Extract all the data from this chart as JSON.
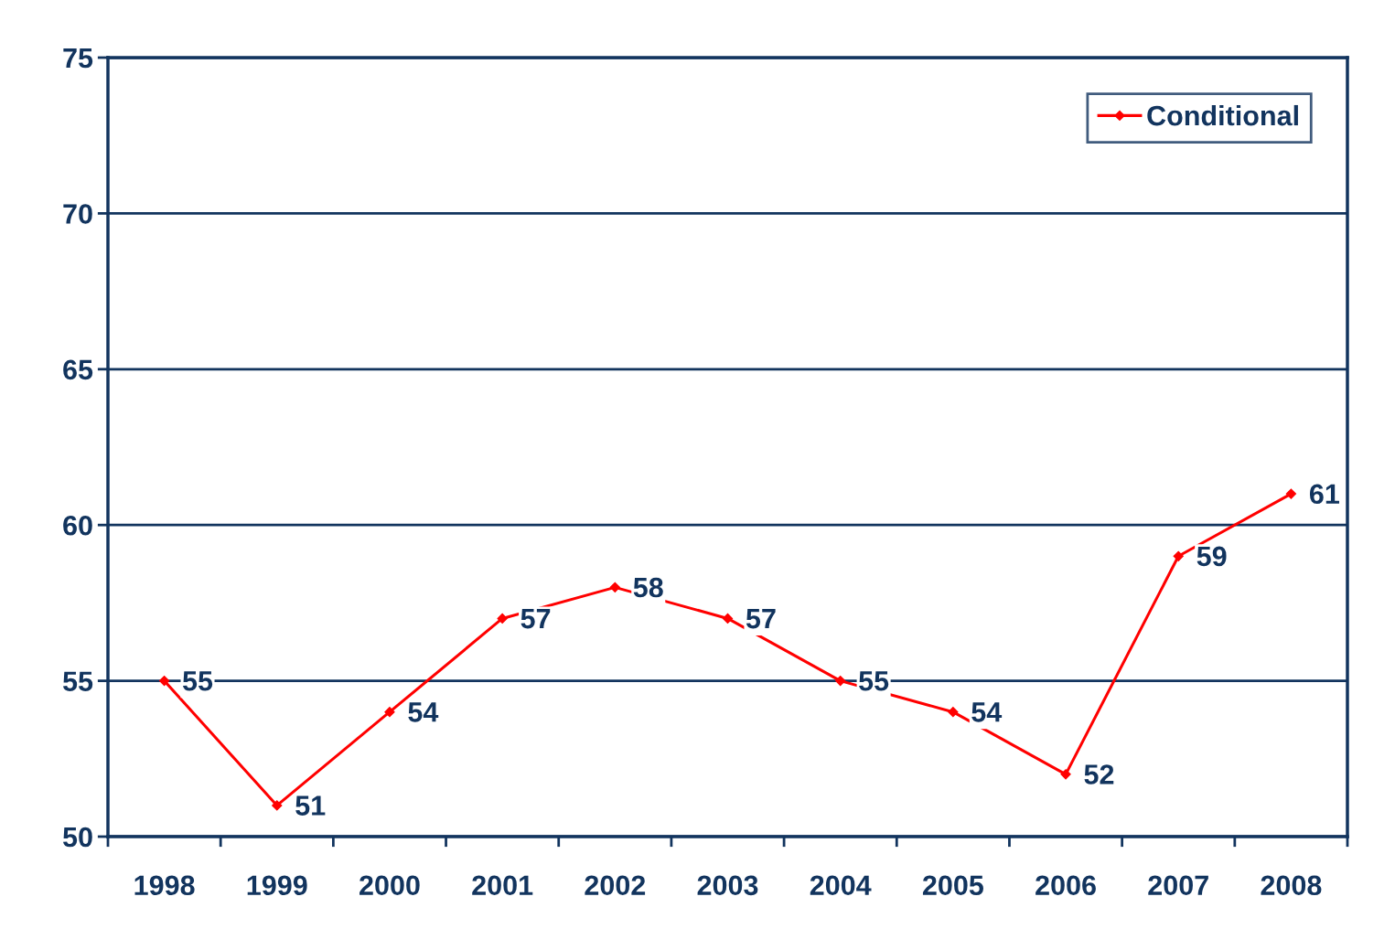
{
  "chart_data": {
    "type": "line",
    "categories": [
      "1998",
      "1999",
      "2000",
      "2001",
      "2002",
      "2003",
      "2004",
      "2005",
      "2006",
      "2007",
      "2008"
    ],
    "series": [
      {
        "name": "Conditional",
        "color": "#ff0000",
        "values": [
          55,
          51,
          54,
          57,
          58,
          57,
          55,
          54,
          52,
          59,
          61
        ]
      }
    ],
    "ylim": [
      50,
      75
    ],
    "yticks": [
      50,
      55,
      60,
      65,
      70,
      75
    ],
    "grid": "y",
    "legend": "top right",
    "marker": "diamond",
    "line_style": "solid",
    "data_labels": true
  }
}
